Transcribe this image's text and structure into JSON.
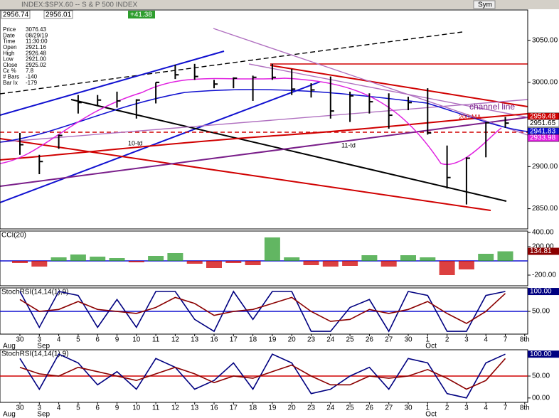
{
  "header": {
    "title": "INDEX:$SPX.60 -- S & P 500 INDEX",
    "values": [
      "2956.74",
      "2956.01",
      "+41.38"
    ],
    "button": "Sym"
  },
  "info": [
    [
      "Price",
      "3076.43"
    ],
    [
      "Date",
      "08/29/19"
    ],
    [
      "Time",
      "11:30:00"
    ],
    [
      "Open",
      "2921.16"
    ],
    [
      "High",
      "2926.48"
    ],
    [
      "Low",
      "2921.00"
    ],
    [
      "Close",
      "2925.02"
    ],
    [
      "Cε %",
      "7.8"
    ],
    [
      "# Bars",
      "-140"
    ],
    [
      "Bar Ix",
      "-179"
    ]
  ],
  "chart_data": [
    {
      "type": "ohlc",
      "title": "INDEX:$SPX.60 -- S & P 500 INDEX",
      "categories": [
        "30",
        "3",
        "4",
        "5",
        "6",
        "9",
        "10",
        "11",
        "12",
        "13",
        "16",
        "17",
        "18",
        "19",
        "20",
        "23",
        "24",
        "25",
        "26",
        "27",
        "30",
        "1",
        "2",
        "3",
        "4",
        "7",
        "8th"
      ],
      "months": [
        "Aug",
        "Sep",
        null,
        null,
        null,
        null,
        null,
        null,
        null,
        null,
        null,
        null,
        null,
        null,
        null,
        null,
        null,
        null,
        null,
        null,
        null,
        "Oct",
        null,
        null,
        null,
        null,
        null
      ],
      "high": [
        2940,
        2914,
        2938,
        2985,
        2985,
        2989,
        2980,
        3000,
        3021,
        3022,
        3003,
        3006,
        3008,
        3022,
        3016,
        2999,
        3007,
        2989,
        2987,
        2987,
        2983,
        2993,
        2925,
        2911,
        2953,
        2959,
        null
      ],
      "low": [
        2914,
        2891,
        2921,
        2963,
        2972,
        2970,
        2957,
        2975,
        3004,
        3003,
        2993,
        2993,
        2978,
        3003,
        2985,
        2982,
        2957,
        2953,
        2963,
        2945,
        2967,
        2938,
        2874,
        2855,
        2911,
        2946,
        null
      ],
      "close": [
        2926,
        2906,
        2937,
        2976,
        2979,
        2978,
        2979,
        3000,
        3009,
        3007,
        2998,
        3005,
        3006,
        3006,
        2992,
        2991,
        2966,
        2984,
        2977,
        2961,
        2976,
        2940,
        2887,
        2910,
        2952,
        2951.65,
        null
      ],
      "color": "#000000",
      "ylim": [
        2826,
        3086
      ],
      "yticks": [
        {
          "value": 3050,
          "label": "3050.00"
        },
        {
          "value": 3000,
          "label": "3000.00"
        },
        {
          "value": 2900,
          "label": "2900.00"
        },
        {
          "value": 2850,
          "label": "2850.00"
        }
      ],
      "price_labels": [
        {
          "value": 2959.48,
          "color": "#d00000"
        },
        {
          "value": 2951.65,
          "color": "#ffffff"
        },
        {
          "value": 2941.83,
          "color": "#1010d0"
        },
        {
          "value": 2933.98,
          "color": "#e020e0"
        }
      ],
      "annotations": [
        {
          "text": "channel line",
          "color": "#7a1f8a"
        },
        {
          "text": "200-MA",
          "color": "#d00000"
        },
        {
          "text": "10-td",
          "color": "#000000"
        },
        {
          "text": "11-td",
          "color": "#000000"
        }
      ]
    },
    {
      "type": "histogram",
      "title": "CCI(20)",
      "values": [
        -30,
        -80,
        50,
        90,
        60,
        40,
        -20,
        70,
        110,
        -40,
        -100,
        -30,
        -60,
        330,
        50,
        -60,
        -80,
        -70,
        80,
        -80,
        80,
        50,
        -200,
        -120,
        100,
        134.81,
        null
      ],
      "colors": [
        "#2e9e2e",
        "#d00000"
      ],
      "ref": 0,
      "ref_color": "#1010d0",
      "ylim": [
        -350,
        420
      ],
      "yticks": [
        {
          "value": 400,
          "label": "400.00"
        },
        {
          "value": 200,
          "label": "200.00"
        },
        {
          "value": -200,
          "label": "-200.00"
        }
      ],
      "last": 134.81,
      "last_color": "#8b0000"
    },
    {
      "type": "line",
      "title": "StochRSI(14,14(1),9)",
      "series": [
        {
          "name": "StochRSI",
          "color": "#000080",
          "values": [
            100,
            10,
            100,
            90,
            10,
            80,
            10,
            100,
            100,
            30,
            0,
            100,
            30,
            100,
            100,
            0,
            0,
            60,
            80,
            0,
            100,
            90,
            0,
            0,
            90,
            100,
            null
          ]
        },
        {
          "name": "Signal",
          "color": "#8b0000",
          "values": [
            80,
            50,
            55,
            75,
            55,
            50,
            45,
            60,
            85,
            70,
            40,
            50,
            55,
            70,
            85,
            50,
            25,
            30,
            55,
            45,
            55,
            75,
            45,
            20,
            50,
            95,
            null
          ]
        }
      ],
      "ref": 50,
      "ref_color": "#1010d0",
      "ylim": [
        -7,
        109
      ],
      "yticks": [
        {
          "value": 50,
          "label": "50.00"
        }
      ],
      "last": {
        "value": 100,
        "label": "100.00"
      },
      "last_color": "#000080"
    },
    {
      "type": "line",
      "title": "StochRSI(14,14(1),9)",
      "series": [
        {
          "name": "StochRSI",
          "color": "#000080",
          "values": [
            90,
            20,
            100,
            80,
            30,
            60,
            20,
            90,
            70,
            20,
            40,
            80,
            20,
            100,
            80,
            10,
            20,
            50,
            70,
            20,
            90,
            80,
            10,
            0,
            80,
            100,
            null
          ]
        },
        {
          "name": "Signal",
          "color": "#8b0000",
          "values": [
            70,
            55,
            50,
            70,
            60,
            50,
            40,
            55,
            70,
            55,
            35,
            50,
            45,
            60,
            75,
            50,
            30,
            30,
            50,
            45,
            50,
            65,
            45,
            20,
            40,
            90,
            null
          ]
        }
      ],
      "ref": 50,
      "ref_color": "#d00000",
      "ylim": [
        -10,
        110
      ],
      "yticks": [
        {
          "value": 50,
          "label": "50.00"
        },
        {
          "value": 0,
          "label": "00.00"
        }
      ],
      "last": {
        "value": 100,
        "label": "100.00"
      },
      "last_color": "#000080"
    }
  ]
}
